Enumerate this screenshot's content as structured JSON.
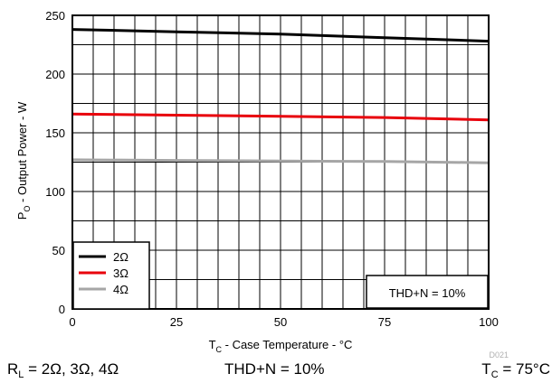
{
  "chart_data": {
    "type": "line",
    "xlabel": {
      "prefix": "T",
      "sub": "C",
      "suffix": " - Case Temperature - °C"
    },
    "ylabel": {
      "prefix": "P",
      "sub": "O",
      "suffix": " - Output Power - W"
    },
    "xlim": [
      0,
      100
    ],
    "ylim": [
      0,
      250
    ],
    "x_ticks": [
      0,
      25,
      50,
      75,
      100
    ],
    "y_ticks": [
      0,
      50,
      100,
      150,
      200,
      250
    ],
    "grid": true,
    "legend_position": "bottom-left",
    "annotation": "THD+N = 10%",
    "watermark": "D021",
    "series": [
      {
        "name": "2Ω",
        "color": "#000000",
        "x": [
          0,
          25,
          50,
          75,
          100
        ],
        "y": [
          238,
          236,
          234,
          231,
          228
        ]
      },
      {
        "name": "3Ω",
        "color": "#e8000b",
        "x": [
          0,
          25,
          50,
          75,
          100
        ],
        "y": [
          166,
          165,
          164,
          163,
          161
        ]
      },
      {
        "name": "4Ω",
        "color": "#a6a6a6",
        "x": [
          0,
          25,
          50,
          75,
          100
        ],
        "y": [
          127,
          126.5,
          126,
          125.5,
          124.5
        ]
      }
    ]
  },
  "captions": {
    "load": {
      "prefix": "R",
      "sub": "L",
      "suffix": " = 2Ω, 3Ω, 4Ω"
    },
    "thd": "THD+N = 10%",
    "temp": "T",
    "temp_sub": "C",
    "temp_suffix": " = 75°C"
  }
}
